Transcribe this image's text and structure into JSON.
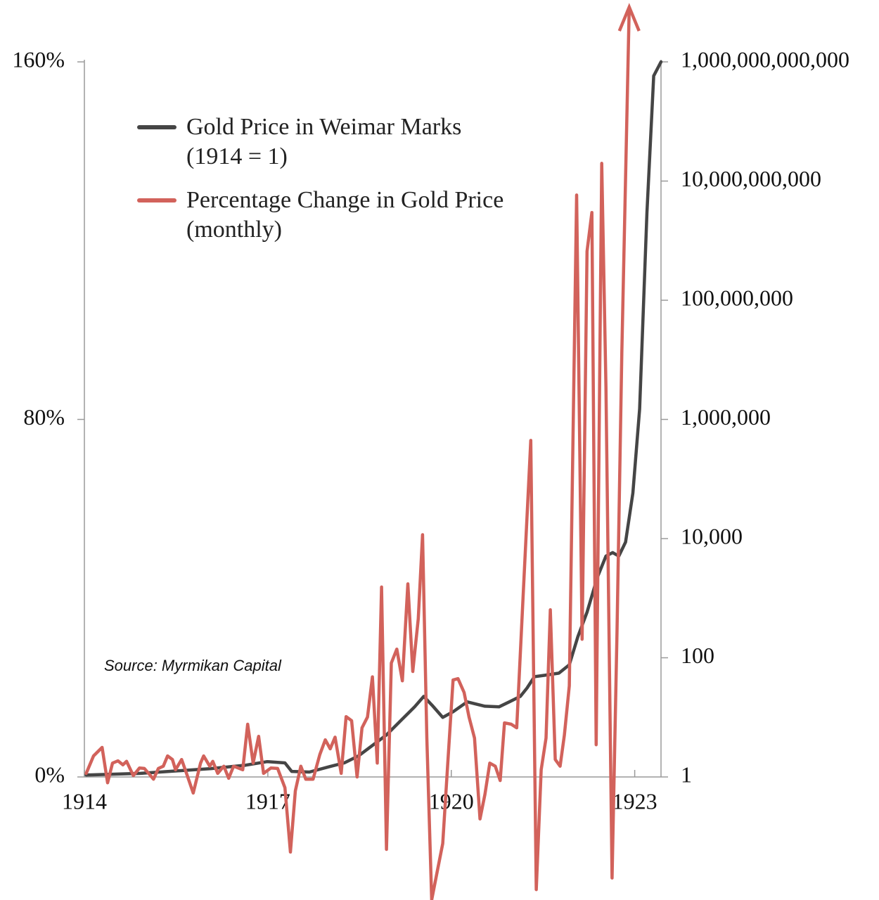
{
  "chart_data": {
    "type": "line",
    "annotation": "Source: Myrmikan Capital",
    "legend": "upper-left",
    "y2scale": "log",
    "xlim": [
      1914,
      1923.43
    ],
    "xticks": [
      1914,
      1917,
      1920,
      1923
    ],
    "ylim": [
      0,
      160
    ],
    "yticks": [
      {
        "value": 0,
        "label": "0%"
      },
      {
        "value": 80,
        "label": "80%"
      },
      {
        "value": 160,
        "label": "160%"
      }
    ],
    "y2lim": [
      1,
      1000000000000
    ],
    "y2ticks": [
      1,
      100,
      {
        "value": 10000,
        "label": "10,000"
      },
      {
        "value": 1000000,
        "label": "1,000,000"
      },
      {
        "value": 100000000,
        "label": "100,000,000"
      },
      {
        "value": 10000000000,
        "label": "10,000,000,000"
      },
      {
        "value": 1000000000000,
        "label": "1,000,000,000,000"
      }
    ],
    "series": [
      {
        "name": "Gold Price in Weimar Marks (1914 = 1)",
        "color": "#454545",
        "axis": "y2",
        "x": [
          1914.03,
          1914.92,
          1916.07,
          1916.64,
          1916.99,
          1917.28,
          1917.39,
          1917.68,
          1918.02,
          1918.25,
          1918.48,
          1918.71,
          1918.94,
          1919.17,
          1919.4,
          1919.55,
          1919.69,
          1919.86,
          1920.03,
          1920.26,
          1920.55,
          1920.78,
          1920.95,
          1921.13,
          1921.24,
          1921.36,
          1921.53,
          1921.76,
          1921.93,
          1922.07,
          1922.22,
          1922.39,
          1922.53,
          1922.64,
          1922.74,
          1922.85,
          1922.97,
          1923.08,
          1923.2,
          1923.31,
          1923.43
        ],
        "values": [
          1.08,
          1.15,
          1.38,
          1.58,
          1.81,
          1.72,
          1.24,
          1.21,
          1.5,
          1.72,
          2.25,
          3.38,
          5.08,
          8.74,
          15,
          22.5,
          15.8,
          10,
          12.4,
          18.2,
          15.4,
          15,
          18.2,
          22.5,
          31.2,
          48.1,
          50.8,
          55.1,
          76.2,
          225,
          582,
          2254,
          5080,
          5820,
          5080,
          8730,
          58200,
          1500000,
          2960000000,
          582000000000,
          1000000000000
        ]
      },
      {
        "name": "Percentage Change in Gold Price (monthly)",
        "color": "#d2625b",
        "x": [
          1914.03,
          1914.15,
          1914.29,
          1914.38,
          1914.46,
          1914.55,
          1914.63,
          1914.69,
          1914.8,
          1914.9,
          1914.98,
          1915.07,
          1915.13,
          1915.21,
          1915.29,
          1915.36,
          1915.44,
          1915.49,
          1915.59,
          1915.67,
          1915.78,
          1915.9,
          1915.95,
          1916.05,
          1916.1,
          1916.18,
          1916.28,
          1916.36,
          1916.44,
          1916.59,
          1916.67,
          1916.76,
          1916.85,
          1916.93,
          1917.05,
          1917.16,
          1917.28,
          1917.37,
          1917.45,
          1917.54,
          1917.62,
          1917.74,
          1917.85,
          1917.94,
          1918.02,
          1918.1,
          1918.2,
          1918.28,
          1918.37,
          1918.46,
          1918.54,
          1918.63,
          1918.71,
          1918.79,
          1918.86,
          1918.94,
          1919.02,
          1919.11,
          1919.2,
          1919.29,
          1919.37,
          1919.46,
          1919.53,
          1919.6,
          1919.68,
          1919.77,
          1919.86,
          1919.94,
          1920.03,
          1920.11,
          1920.21,
          1920.29,
          1920.38,
          1920.47,
          1920.55,
          1920.63,
          1920.72,
          1920.8,
          1920.87,
          1920.98,
          1921.07,
          1921.18,
          1921.3,
          1921.39,
          1921.47,
          1921.55,
          1921.62,
          1921.7,
          1921.78,
          1921.85,
          1921.93,
          1922.05,
          1922.14,
          1922.22,
          1922.3,
          1922.37,
          1922.46,
          1922.53,
          1922.63,
          1922.71,
          1922.79,
          1922.91
        ],
        "values": [
          0.8,
          4.7,
          6.6,
          -1.3,
          3.1,
          3.6,
          2.7,
          3.5,
          0.3,
          2.0,
          1.9,
          0.5,
          -0.5,
          1.9,
          2.4,
          4.7,
          3.9,
          1.6,
          3.9,
          0.8,
          -3.6,
          3.1,
          4.7,
          2.4,
          3.5,
          0.8,
          2.4,
          -0.3,
          2.4,
          1.6,
          11.8,
          3.1,
          9.1,
          0.8,
          2.0,
          1.9,
          -2.4,
          -16.8,
          -3.1,
          2.4,
          -0.5,
          -0.5,
          5.0,
          8.3,
          6.3,
          8.9,
          0.8,
          13.5,
          12.6,
          0.0,
          11.0,
          13.4,
          22.4,
          3.1,
          42.5,
          -16.2,
          25.5,
          28.6,
          21.5,
          43.2,
          23.6,
          35.4,
          54.2,
          8.7,
          -27.5,
          -21.2,
          -14.9,
          2.4,
          21.7,
          22.0,
          18.9,
          13.4,
          8.7,
          -9.4,
          -3.9,
          3.1,
          2.4,
          -0.8,
          12.1,
          11.8,
          11.0,
          41.7,
          75.3,
          -25.2,
          1.6,
          8.7,
          37.4,
          3.9,
          2.4,
          9.4,
          20.4,
          130.2,
          30.8,
          117.6,
          126.3,
          7.2,
          137.3,
          87.3,
          -22.6,
          32.2,
          95.1,
          172.2
        ]
      }
    ]
  }
}
